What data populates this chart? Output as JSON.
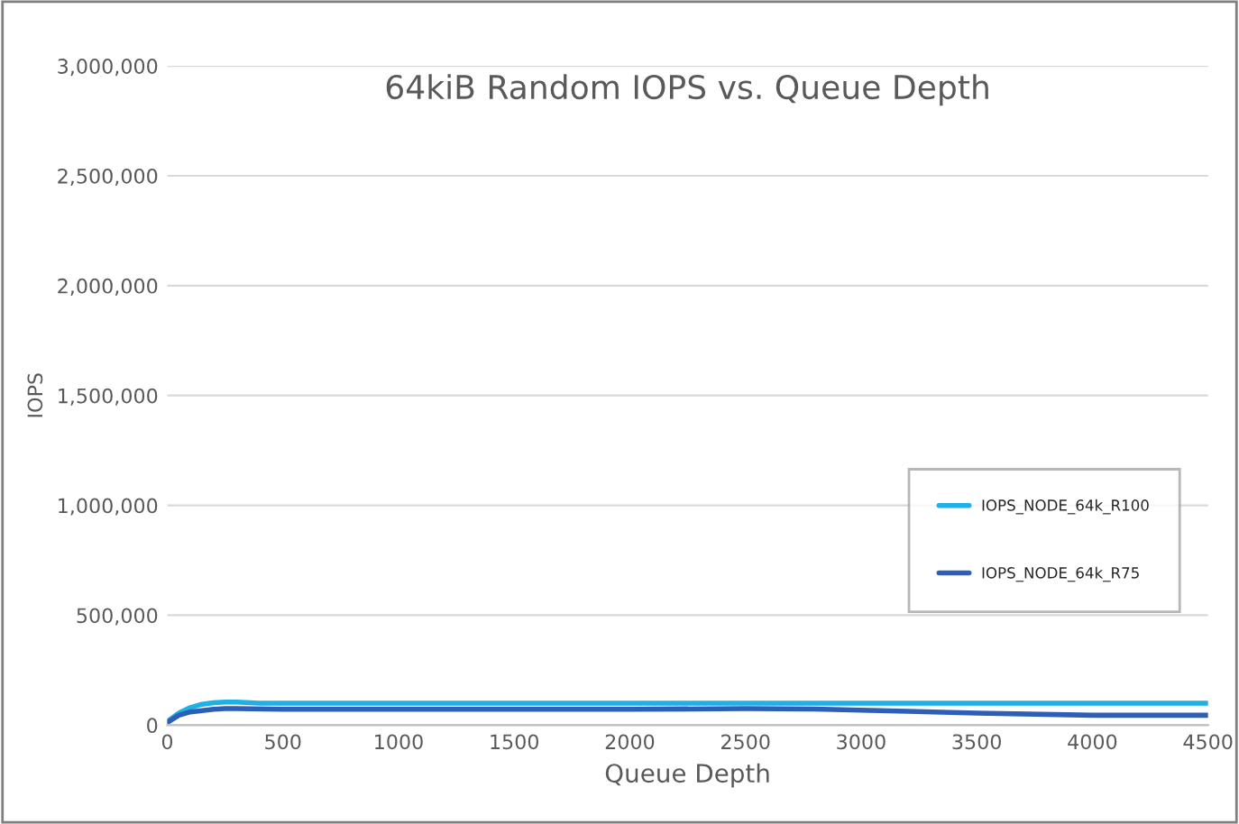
{
  "chart_data": {
    "type": "line",
    "title": "64kiB Random IOPS vs. Queue Depth",
    "xlabel": "Queue Depth",
    "ylabel": "IOPS",
    "series": [
      {
        "name": "IOPS_NODE_64k_R100",
        "color": "#1fb0e6",
        "x": [
          5,
          50,
          100,
          150,
          200,
          250,
          300,
          400,
          1000,
          2000,
          3000,
          4000,
          4500
        ],
        "values": [
          20000,
          55000,
          80000,
          95000,
          102000,
          105000,
          105000,
          100000,
          100000,
          100000,
          100000,
          100000,
          100000
        ]
      },
      {
        "name": "IOPS_NODE_64k_R75",
        "color": "#2e5fb8",
        "x": [
          5,
          50,
          100,
          200,
          250,
          300,
          500,
          1000,
          2000,
          2500,
          2800,
          3000,
          3500,
          4000,
          4500
        ],
        "values": [
          15000,
          45000,
          60000,
          72000,
          75000,
          75000,
          72000,
          72000,
          72000,
          75000,
          73000,
          68000,
          55000,
          45000,
          45000
        ]
      }
    ],
    "xlim": [
      0,
      4500
    ],
    "xticks": [
      0,
      500,
      1000,
      1500,
      2000,
      2500,
      3000,
      3500,
      4000,
      4500
    ],
    "ylim": [
      0,
      3000000
    ],
    "yticks": [
      {
        "value": 0,
        "label": "0"
      },
      {
        "value": 500000,
        "label": "500,000"
      },
      {
        "value": 1000000,
        "label": "1,000,000"
      },
      {
        "value": 1500000,
        "label": "1,500,000"
      },
      {
        "value": 2000000,
        "label": "2,000,000"
      },
      {
        "value": 2500000,
        "label": "2,500,000"
      },
      {
        "value": 3000000,
        "label": "3,000,000"
      }
    ],
    "grid": "y",
    "legend": "right",
    "marker": "none",
    "line_style": "solid"
  }
}
